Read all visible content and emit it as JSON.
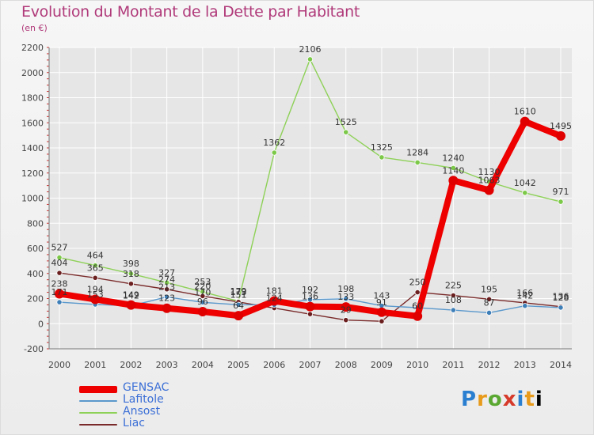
{
  "header": {
    "title": "Evolution du Montant de la Dette par Habitant",
    "subtitle": "(en €)"
  },
  "logo": {
    "letters": [
      "P",
      "r",
      "o",
      "x",
      "i",
      "t",
      "i"
    ],
    "text": "Proxiti"
  },
  "colors": {
    "title": "#b03a7a",
    "axis": "#555555",
    "grid": "#ffffff"
  },
  "chart_data": {
    "type": "line",
    "title": "Evolution du Montant de la Dette par Habitant",
    "subtitle": "(en €)",
    "x": [
      "2000",
      "2001",
      "2002",
      "2003",
      "2004",
      "2005",
      "2006",
      "2007",
      "2008",
      "2009",
      "2010",
      "2011",
      "2012",
      "2013",
      "2014"
    ],
    "ylim": [
      -200,
      2200
    ],
    "yticks": [
      -200,
      0,
      200,
      400,
      600,
      800,
      1000,
      1200,
      1400,
      1600,
      1800,
      2000,
      2200
    ],
    "grid": true,
    "legend_position": "bottom-left",
    "series": [
      {
        "name": "Ansost",
        "color": "#8ed158",
        "marker": "#7cc848",
        "values": [
          527,
          464,
          398,
          327,
          253,
          179,
          1362,
          2106,
          1525,
          1325,
          1284,
          1240,
          1130,
          1042,
          971
        ],
        "labels": [
          "527",
          "464",
          "398",
          "327",
          "253",
          "179",
          "1362",
          "2106",
          "1525",
          "1325",
          "1284",
          "1240",
          "1130",
          "1042",
          "971"
        ]
      },
      {
        "name": "Liac",
        "color": "#7a2a2a",
        "marker": "#6b1f1f",
        "values": [
          404,
          365,
          318,
          274,
          220,
          173,
          124,
          76,
          29,
          19,
          250,
          225,
          195,
          166,
          136
        ],
        "labels": [
          "404",
          "365",
          "318",
          "274",
          "220",
          "173",
          "124",
          "",
          "29",
          "",
          "250",
          "225",
          "195",
          "166",
          "136"
        ]
      },
      {
        "name": "Lafitole",
        "color": "#5a98cc",
        "marker": "#3f7fb8",
        "values": [
          171,
          153,
          142,
          213,
          170,
          151,
          150,
          192,
          198,
          143,
          127,
          108,
          87,
          142,
          128
        ],
        "labels": [
          "171",
          "153",
          "142",
          "213",
          "170",
          "151",
          "",
          "192",
          "198",
          "143",
          "",
          "108",
          "87",
          "142",
          "128"
        ]
      },
      {
        "name": "GENSAC",
        "color": "#ee0000",
        "marker": "#e00000",
        "values": [
          238,
          194,
          149,
          123,
          96,
          64,
          181,
          136,
          133,
          91,
          60,
          1140,
          1063,
          1610,
          1495
        ],
        "labels": [
          "238",
          "194",
          "149",
          "123",
          "96",
          "64",
          "181",
          "136",
          "133",
          "91",
          "60",
          "1140",
          "1063",
          "1610",
          "1495"
        ]
      }
    ]
  },
  "legend": [
    {
      "label": "GENSAC",
      "color": "#ee0000",
      "thick": true,
      "textColor": "#3b6fd6"
    },
    {
      "label": "Lafitole",
      "color": "#5a98cc",
      "thick": false,
      "textColor": "#3b6fd6"
    },
    {
      "label": "Ansost",
      "color": "#8ed158",
      "thick": false,
      "textColor": "#3b6fd6"
    },
    {
      "label": "Liac",
      "color": "#7a2a2a",
      "thick": false,
      "textColor": "#3b6fd6"
    }
  ]
}
